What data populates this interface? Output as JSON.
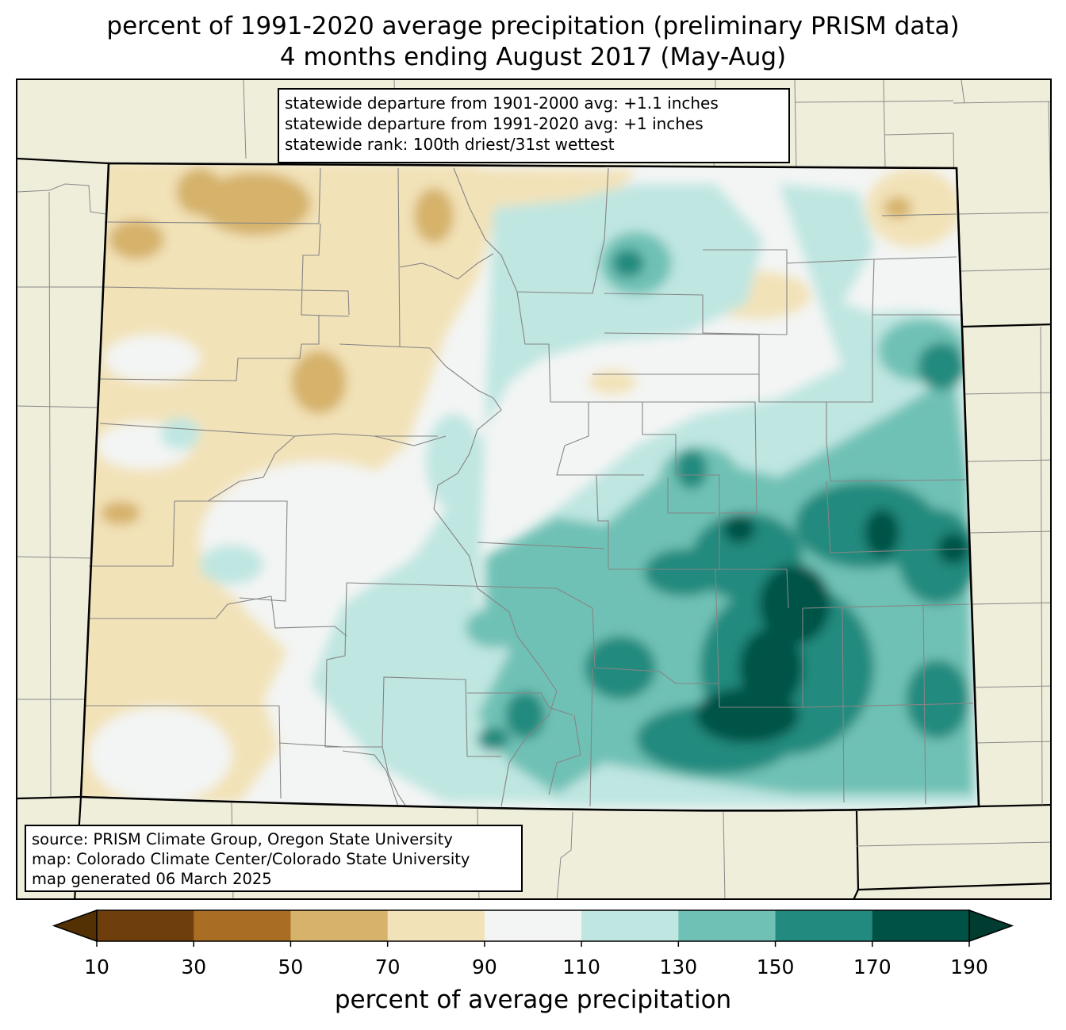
{
  "title": {
    "line1": "percent of 1991-2020 average precipitation (preliminary PRISM data)",
    "line2": "4 months ending August 2017 (May-Aug)"
  },
  "stats": {
    "line1": "statewide departure from 1901-2000 avg: +1.1 inches",
    "line2": "statewide departure from 1991-2020 avg: +1 inches",
    "line3": "statewide rank: 100th driest/31st wettest"
  },
  "source": {
    "line1": "source: PRISM Climate Group, Oregon State University",
    "line2": "map: Colorado Climate Center/Colorado State University",
    "line3": "map generated 06 March 2025"
  },
  "colorbar": {
    "label": "percent of average precipitation",
    "ticks": [
      "10",
      "30",
      "50",
      "70",
      "90",
      "110",
      "130",
      "150",
      "170",
      "190"
    ],
    "colors": [
      "#6e3f0c",
      "#a96d24",
      "#d6b26a",
      "#f2e2b8",
      "#f3f5f4",
      "#bfe6e1",
      "#70c1b5",
      "#228a7e",
      "#005247"
    ],
    "under_color": "#543005",
    "over_color": "#003c30"
  },
  "region": {
    "state": "Colorado",
    "background_color": "#efeedb"
  }
}
